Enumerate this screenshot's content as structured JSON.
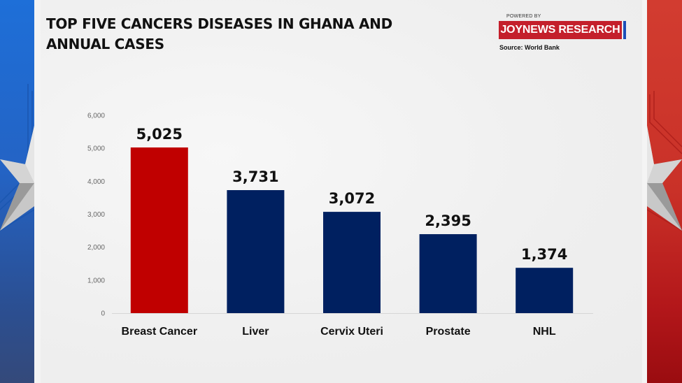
{
  "header": {
    "title_line1": "TOP FIVE CANCERS DISEASES IN GHANA AND",
    "title_line2": "ANNUAL CASES",
    "powered_by": "POWERED BY",
    "brand": "JOYNEWS RESEARCH",
    "source": "Source: World Bank"
  },
  "colors": {
    "highlight_bar": "#c00000",
    "bar": "#002060",
    "left_band": "#2463c4",
    "right_band": "#c93128",
    "brand_bg": "#c41f2b"
  },
  "decor": {
    "left_icon": "star-icon",
    "right_icon": "star-icon"
  },
  "chart_data": {
    "type": "bar",
    "title": "TOP FIVE CANCERS DISEASES IN GHANA AND ANNUAL CASES",
    "xlabel": "",
    "ylabel": "",
    "categories": [
      "Breast Cancer",
      "Liver",
      "Cervix Uteri",
      "Prostate",
      "NHL"
    ],
    "values": [
      5025,
      3731,
      3072,
      2395,
      1374
    ],
    "data_labels": [
      "5,025",
      "3,731",
      "3,072",
      "2,395",
      "1,374"
    ],
    "highlight_index": 0,
    "ylim": [
      0,
      6000
    ],
    "yticks": [
      0,
      1000,
      2000,
      3000,
      4000,
      5000,
      6000
    ],
    "ytick_labels": [
      "0",
      "1,000",
      "2,000",
      "3,000",
      "4,000",
      "5,000",
      "6,000"
    ],
    "grid": false,
    "legend": "none",
    "source": "World Bank"
  }
}
